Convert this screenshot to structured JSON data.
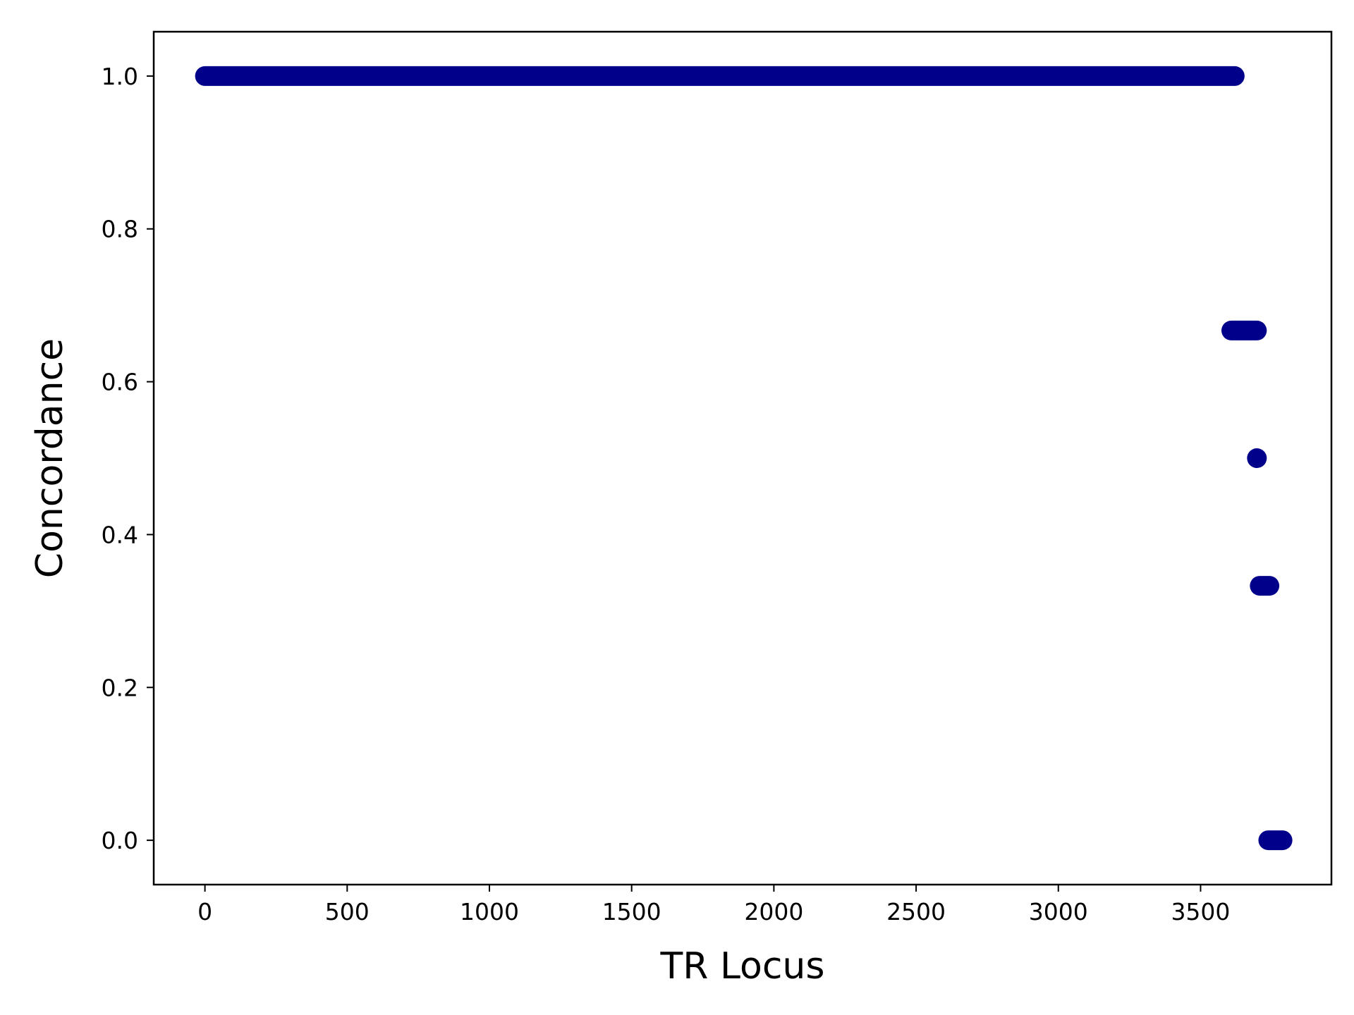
{
  "chart_data": {
    "type": "scatter",
    "xlabel": "TR Locus",
    "ylabel": "Concordance",
    "xlim": [
      -180,
      3960
    ],
    "ylim": [
      -0.058,
      1.058
    ],
    "xticks": [
      0,
      500,
      1000,
      1500,
      2000,
      2500,
      3000,
      3500
    ],
    "xtick_labels": [
      "0",
      "500",
      "1000",
      "1500",
      "2000",
      "2500",
      "3000",
      "3500"
    ],
    "yticks": [
      0.0,
      0.2,
      0.4,
      0.6,
      0.8,
      1.0
    ],
    "ytick_labels": [
      "0.0",
      "0.2",
      "0.4",
      "0.6",
      "0.8",
      "1.0"
    ],
    "grid": false,
    "marker_color": "#00008b",
    "series": [
      {
        "segments": [
          {
            "y": 1.0,
            "x_start": 0,
            "x_end": 3620
          },
          {
            "y": 0.667,
            "x_start": 3608,
            "x_end": 3698
          },
          {
            "y": 0.5,
            "x_start": 3698,
            "x_end": 3698
          },
          {
            "y": 0.333,
            "x_start": 3708,
            "x_end": 3742
          },
          {
            "y": 0.0,
            "x_start": 3738,
            "x_end": 3788
          }
        ]
      }
    ]
  }
}
